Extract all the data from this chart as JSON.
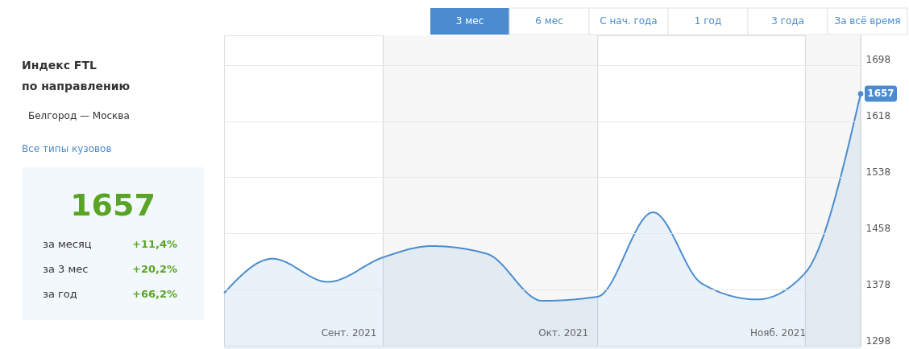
{
  "chart_data": {
    "type": "area",
    "x": [
      "2021-09-08",
      "2021-09-15",
      "2021-09-23",
      "2021-10-01",
      "2021-10-08",
      "2021-10-16",
      "2021-10-24",
      "2021-11-01",
      "2021-11-09",
      "2021-11-16",
      "2021-11-24",
      "2021-12-01",
      "2021-12-09"
    ],
    "series": [
      {
        "color": "#4a8ccf",
        "values": [
          1373,
          1422,
          1389,
          1424,
          1440,
          1429,
          1362,
          1368,
          1488,
          1387,
          1364,
          1402,
          1657
        ],
        "value_labels": [
          null,
          null,
          null,
          null,
          null,
          null,
          null,
          null,
          null,
          null,
          null,
          null,
          "1657"
        ]
      }
    ],
    "xlim": [
      "2021-09-08",
      "2021-12-09"
    ],
    "xticks": [
      {
        "value": "2021-09-26",
        "label": "Сент. 2021"
      },
      {
        "value": "2021-10-27",
        "label": "Окт. 2021"
      },
      {
        "value": "2021-11-27",
        "label": "Нояб. 2021"
      }
    ],
    "ylim": [
      1298,
      1740
    ],
    "yticks": [
      1298,
      1378,
      1458,
      1538,
      1618,
      1698
    ],
    "bands": [
      {
        "axis": "x",
        "from": "2021-10-01",
        "to": "2021-11-01",
        "color": "#f7f7f7"
      },
      {
        "axis": "x",
        "from": "2021-12-01",
        "to": "2021-12-09",
        "color": "#f7f7f7"
      }
    ],
    "grid": "y",
    "legend": false,
    "marker": "none",
    "line_style": "solid",
    "annotations": [
      "3 мес",
      "6 мес",
      "С нач. года",
      "1 год",
      "3 года",
      "За всё время",
      "Индекс FTL",
      "по направлению",
      "Белгород — Москва",
      "Все типы кузовов",
      "1657",
      "за месяц",
      "+11,4%",
      "за 3 мес",
      "+20,2%",
      "за год",
      "+66,2%"
    ]
  }
}
